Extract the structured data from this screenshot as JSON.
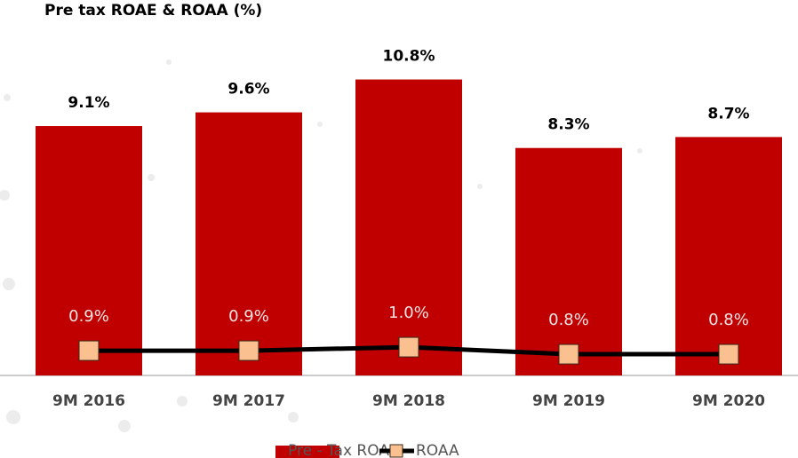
{
  "chart_data": {
    "type": "bar_line",
    "title": "Pre tax ROAE & ROAA (%)",
    "categories": [
      "9M 2016",
      "9M 2017",
      "9M 2018",
      "9M 2019",
      "9M 2020"
    ],
    "series": [
      {
        "name": "Pre - Tax ROAE",
        "type": "bar",
        "color": "#c00000",
        "values": [
          9.1,
          9.6,
          10.8,
          8.3,
          8.7
        ],
        "value_labels": [
          "9.1%",
          "9.6%",
          "10.8%",
          "8.3%",
          "8.7%"
        ]
      },
      {
        "name": "ROAA",
        "type": "line",
        "axis": "y2",
        "color": "#000000",
        "marker_color": "#fac090",
        "values": [
          0.9,
          0.9,
          1.0,
          0.8,
          0.8
        ],
        "value_labels": [
          "0.9%",
          "0.9%",
          "1.0%",
          "0.8%",
          "0.8%"
        ]
      }
    ],
    "ylim": [
      0,
      13.7
    ],
    "y2lim": [
      0.2,
      10.8
    ],
    "legend": "bottom"
  }
}
